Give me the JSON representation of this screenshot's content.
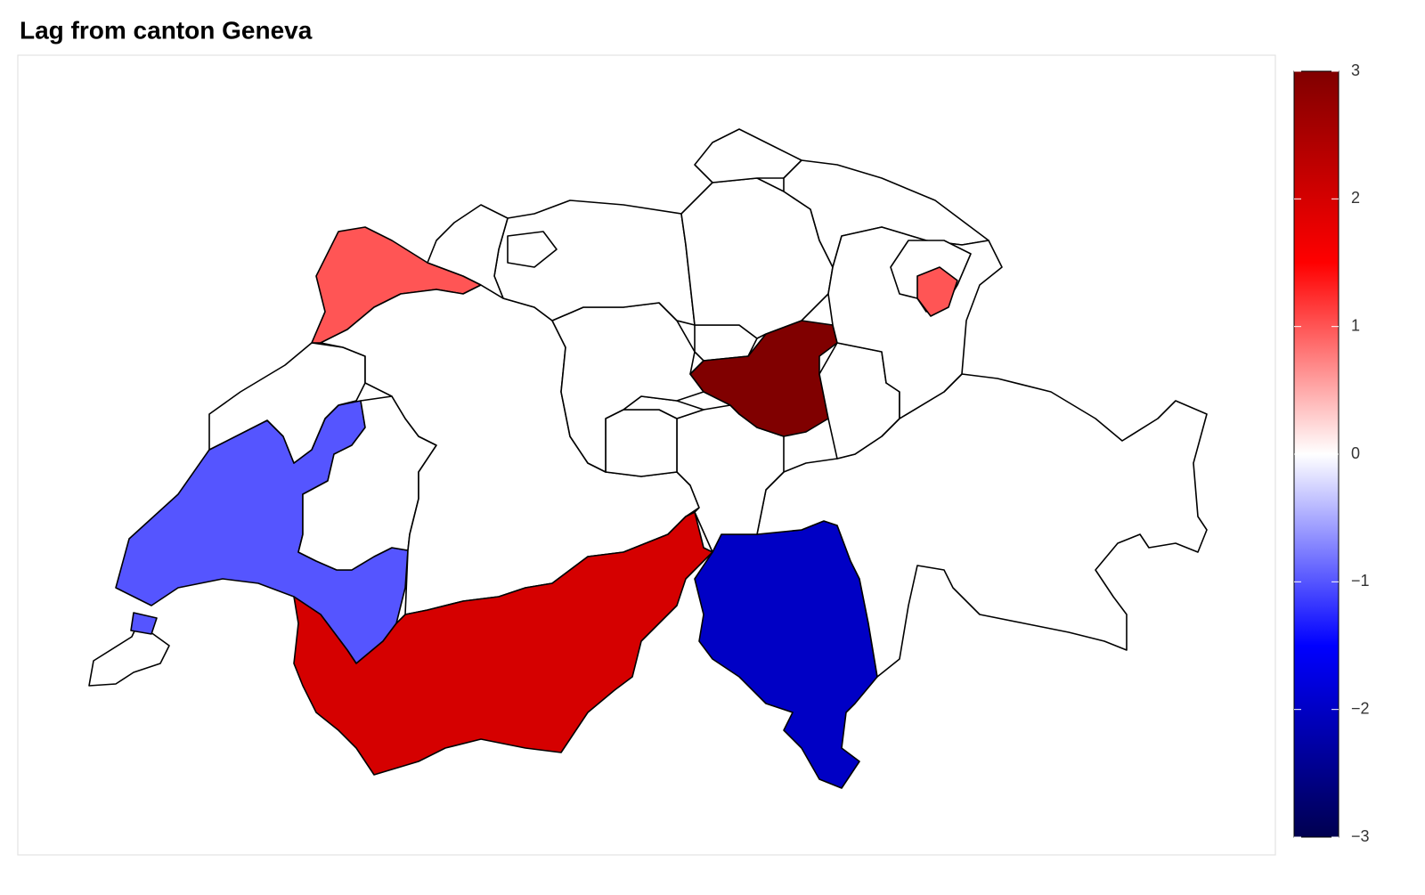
{
  "chart_data": {
    "type": "choropleth",
    "title": "Lag from canton Geneva",
    "values": [
      0,
      -1,
      0,
      1,
      0,
      0,
      2,
      -2,
      0,
      0,
      0,
      0,
      0,
      0,
      3,
      0,
      0,
      0,
      0,
      0,
      0,
      0,
      0,
      0,
      1
    ],
    "colorscale": [
      [
        -3,
        "#000050"
      ],
      [
        -1.5,
        "#0000ff"
      ],
      [
        0,
        "#ffffff"
      ],
      [
        1.5,
        "#ff0000"
      ],
      [
        3,
        "#800000"
      ]
    ],
    "clim": [
      -3,
      3
    ],
    "cticks": [
      {
        "value": -3,
        "label": "−3"
      },
      {
        "value": -2,
        "label": "−2"
      },
      {
        "value": -1,
        "label": "−1"
      },
      0,
      1,
      2,
      3
    ]
  }
}
